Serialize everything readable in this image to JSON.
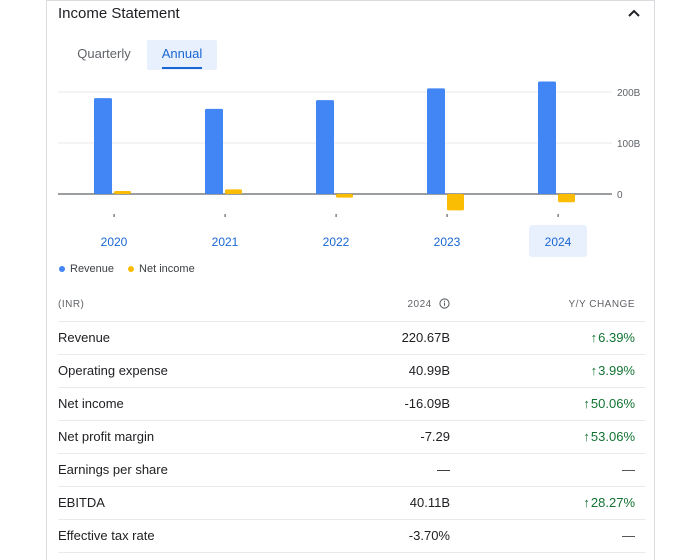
{
  "card": {
    "title": "Income Statement",
    "collapse_icon": "chevron-up-icon"
  },
  "tabs": [
    {
      "label": "Quarterly",
      "active": false
    },
    {
      "label": "Annual",
      "active": true
    }
  ],
  "chart_data": {
    "type": "bar",
    "categories": [
      "2020",
      "2021",
      "2022",
      "2023",
      "2024"
    ],
    "selected_category": "2024",
    "series": [
      {
        "name": "Revenue",
        "color": "#4285f4",
        "values": [
          188,
          167,
          184,
          207,
          220.67
        ]
      },
      {
        "name": "Net income",
        "color": "#fbbc04",
        "values": [
          6,
          9,
          -7,
          -32,
          -16.09
        ]
      }
    ],
    "y_ticks": [
      "200B",
      "100B",
      "0"
    ],
    "y_tick_values": [
      200,
      100,
      0
    ],
    "ylim": [
      -40,
      225
    ],
    "unit": "B",
    "legend_position": "bottom-left"
  },
  "legend": [
    {
      "label": "Revenue",
      "color": "#4285f4"
    },
    {
      "label": "Net income",
      "color": "#fbbc04"
    }
  ],
  "table": {
    "header": {
      "label": "(INR)",
      "year": "2024",
      "change": "Y/Y CHANGE"
    },
    "rows": [
      {
        "label": "Revenue",
        "value": "220.67B",
        "change": "6.39%",
        "arrow": "up"
      },
      {
        "label": "Operating expense",
        "value": "40.99B",
        "change": "3.99%",
        "arrow": "up"
      },
      {
        "label": "Net income",
        "value": "-16.09B",
        "change": "50.06%",
        "arrow": "up"
      },
      {
        "label": "Net profit margin",
        "value": "-7.29",
        "change": "53.06%",
        "arrow": "up"
      },
      {
        "label": "Earnings per share",
        "value": "—",
        "change": "—",
        "arrow": "none"
      },
      {
        "label": "EBITDA",
        "value": "40.11B",
        "change": "28.27%",
        "arrow": "up"
      },
      {
        "label": "Effective tax rate",
        "value": "-3.70%",
        "change": "—",
        "arrow": "none"
      }
    ]
  }
}
